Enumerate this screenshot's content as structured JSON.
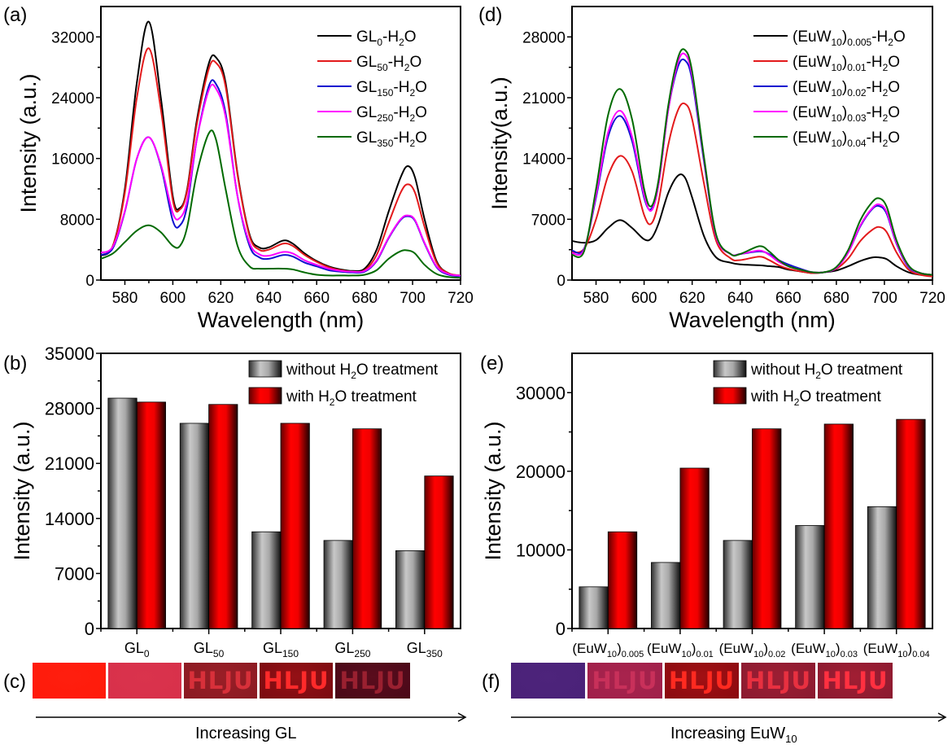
{
  "panels": {
    "a": "(a)",
    "b": "(b)",
    "c": "(c)",
    "d": "(d)",
    "e": "(e)",
    "f": "(f)"
  },
  "colors": {
    "black": "#000000",
    "red": "#e31a1c",
    "blue": "#1010d0",
    "magenta": "#ff00ff",
    "green": "#006a00",
    "bar_gray": "#a0a0a0",
    "bar_red": "#ff0000"
  },
  "chart_data": [
    {
      "id": "a",
      "type": "line",
      "xlabel": "Wavelength (nm)",
      "ylabel": "Intensity (a.u.)",
      "xlim": [
        570,
        720
      ],
      "ylim": [
        0,
        36000
      ],
      "xticks": [
        580,
        600,
        620,
        640,
        660,
        680,
        700,
        720
      ],
      "yticks": [
        0,
        8000,
        16000,
        24000,
        32000
      ],
      "legend_position": "top-right",
      "x": [
        570,
        575,
        580,
        585,
        590,
        595,
        600,
        603,
        606,
        610,
        615,
        618,
        622,
        627,
        632,
        636,
        640,
        646,
        650,
        655,
        660,
        665,
        670,
        675,
        680,
        685,
        690,
        695,
        698,
        701,
        705,
        710,
        715,
        720
      ],
      "series": [
        {
          "name": "GL0-H2O",
          "label_main": "GL",
          "label_sub": "0",
          "color": "#000000",
          "values": [
            3200,
            4500,
            12000,
            26000,
            34000,
            24000,
            11000,
            9500,
            12000,
            21000,
            28500,
            29300,
            26000,
            14000,
            6000,
            4300,
            4300,
            5200,
            4800,
            3500,
            2500,
            1800,
            1400,
            1200,
            1500,
            4000,
            9000,
            13500,
            15000,
            13500,
            8000,
            2500,
            900,
            600
          ]
        },
        {
          "name": "GL50-H2O",
          "label_main": "GL",
          "label_sub": "50",
          "color": "#e31a1c",
          "values": [
            3300,
            4500,
            11500,
            24000,
            30500,
            22500,
            10500,
            9300,
            11800,
            20500,
            27800,
            28600,
            25500,
            13800,
            5800,
            4000,
            4000,
            4800,
            4500,
            3300,
            2400,
            1700,
            1300,
            1100,
            1300,
            3300,
            7500,
            11500,
            12600,
            11500,
            7000,
            2300,
            900,
            600
          ]
        },
        {
          "name": "GL150-H2O",
          "label_main": "GL",
          "label_sub": "150",
          "color": "#1010d0",
          "values": [
            3300,
            4200,
            9000,
            16000,
            18800,
            15000,
            7800,
            7200,
            9800,
            18500,
            25500,
            25800,
            22000,
            11000,
            4500,
            3000,
            2800,
            3300,
            3100,
            2300,
            1800,
            1300,
            1100,
            1000,
            1100,
            2500,
            5500,
            7900,
            8400,
            7800,
            4800,
            1700,
            700,
            500
          ]
        },
        {
          "name": "GL250-H2O",
          "label_main": "GL",
          "label_sub": "250",
          "color": "#ff00ff",
          "values": [
            3600,
            4400,
            9100,
            16000,
            18800,
            15200,
            8800,
            8200,
            10500,
            18500,
            25000,
            25200,
            21500,
            11000,
            4900,
            3400,
            3200,
            3700,
            3500,
            2600,
            2000,
            1500,
            1200,
            1100,
            1200,
            2600,
            5600,
            8000,
            8500,
            7900,
            4900,
            1800,
            800,
            600
          ]
        },
        {
          "name": "GL350-H2O",
          "label_main": "GL",
          "label_sub": "350",
          "color": "#006a00",
          "values": [
            2800,
            3500,
            5000,
            6500,
            7200,
            6300,
            4500,
            4500,
            7000,
            14000,
            19300,
            18500,
            12000,
            4500,
            1800,
            1500,
            1500,
            1500,
            1400,
            1000,
            700,
            600,
            600,
            600,
            700,
            1300,
            2800,
            3800,
            3900,
            3500,
            2000,
            800,
            400,
            300
          ]
        }
      ]
    },
    {
      "id": "d",
      "type": "line",
      "xlabel": "Wavelength (nm)",
      "ylabel": "Intensity(a.u.)",
      "xlim": [
        570,
        720
      ],
      "ylim": [
        0,
        31500
      ],
      "xticks": [
        580,
        600,
        620,
        640,
        660,
        680,
        700,
        720
      ],
      "yticks": [
        0,
        7000,
        14000,
        21000,
        28000
      ],
      "legend_position": "top-right",
      "x": [
        570,
        575,
        580,
        585,
        590,
        595,
        600,
        603,
        606,
        610,
        614,
        617,
        620,
        625,
        630,
        636,
        640,
        648,
        652,
        656,
        660,
        665,
        670,
        675,
        680,
        685,
        690,
        695,
        698,
        701,
        705,
        710,
        715,
        720
      ],
      "series": [
        {
          "name": "(EuW10)0.005-H2O",
          "label_main": "(EuW",
          "label_sub1": "10",
          "label_mid": ")",
          "label_sub2": "0.005",
          "color": "#000000",
          "values": [
            4500,
            4300,
            4600,
            6000,
            6900,
            6000,
            4700,
            4800,
            6500,
            10000,
            12000,
            11800,
            9500,
            5000,
            2600,
            2000,
            1800,
            1700,
            1600,
            1500,
            1200,
            1000,
            800,
            900,
            1100,
            1600,
            2200,
            2600,
            2600,
            2400,
            1600,
            900,
            600,
            500
          ]
        },
        {
          "name": "(EuW10)0.01-H2O",
          "label_main": "(EuW",
          "label_sub1": "10",
          "label_mid": ")",
          "label_sub2": "0.01",
          "color": "#e31a1c",
          "values": [
            3200,
            3600,
            7000,
            12000,
            14300,
            12500,
            7500,
            6500,
            9000,
            15500,
            19500,
            20300,
            18500,
            11000,
            4500,
            2500,
            2300,
            2700,
            2300,
            1700,
            1300,
            1000,
            800,
            900,
            1300,
            2500,
            4500,
            5800,
            6100,
            5500,
            3200,
            1200,
            600,
            400
          ]
        },
        {
          "name": "(EuW10)0.02-H2O",
          "label_main": "(EuW",
          "label_sub1": "10",
          "label_mid": ")",
          "label_sub2": "0.02",
          "color": "#1010d0",
          "values": [
            3400,
            3600,
            9500,
            16500,
            18900,
            16000,
            9500,
            8200,
            11000,
            19500,
            24500,
            25300,
            23000,
            13500,
            5000,
            3000,
            3000,
            3300,
            3000,
            2300,
            1800,
            1300,
            900,
            900,
            1400,
            3200,
            6200,
            8200,
            8500,
            7600,
            4200,
            1500,
            800,
            600
          ]
        },
        {
          "name": "(EuW10)0.03-H2O",
          "label_main": "(EuW",
          "label_sub1": "10",
          "label_mid": ")",
          "label_sub2": "0.03",
          "color": "#ff00ff",
          "values": [
            3100,
            3500,
            9800,
            17000,
            19500,
            16500,
            9800,
            8000,
            11000,
            19500,
            25000,
            26000,
            23500,
            13800,
            5000,
            3000,
            3000,
            3400,
            2900,
            2100,
            1600,
            1200,
            900,
            900,
            1400,
            3200,
            6300,
            8300,
            8700,
            7800,
            4300,
            1600,
            800,
            600
          ]
        },
        {
          "name": "(EuW10)0.04-H2O",
          "label_main": "(EuW",
          "label_sub1": "10",
          "label_mid": ")",
          "label_sub2": "0.04",
          "color": "#006a00",
          "values": [
            2900,
            3300,
            10500,
            19000,
            22000,
            18500,
            10500,
            8500,
            11500,
            20000,
            25500,
            26500,
            24000,
            14000,
            5200,
            3000,
            3000,
            3900,
            3300,
            2300,
            1600,
            1200,
            900,
            900,
            1500,
            3500,
            6900,
            9000,
            9400,
            8400,
            4600,
            1700,
            800,
            600
          ]
        }
      ]
    },
    {
      "id": "b",
      "type": "bar",
      "xlabel": "",
      "ylabel": "Intensity (a.u.)",
      "ylim": [
        0,
        35000
      ],
      "yticks": [
        0,
        7000,
        14000,
        21000,
        28000,
        35000
      ],
      "legend_position": "top-right",
      "categories": [
        {
          "main": "GL",
          "sub": "0"
        },
        {
          "main": "GL",
          "sub": "50"
        },
        {
          "main": "GL",
          "sub": "150"
        },
        {
          "main": "GL",
          "sub": "250"
        },
        {
          "main": "GL",
          "sub": "350"
        }
      ],
      "series": [
        {
          "name": "without H2O treatment",
          "label_pre": "without H",
          "label_sub": "2",
          "label_post": "O treatment",
          "color": "#a0a0a0",
          "values": [
            29300,
            26100,
            12300,
            11200,
            9900
          ]
        },
        {
          "name": "with H2O treatment",
          "label_pre": "with H",
          "label_sub": "2",
          "label_post": "O treatment",
          "color": "#ff0000",
          "values": [
            28800,
            28500,
            26100,
            25400,
            19400
          ]
        }
      ]
    },
    {
      "id": "e",
      "type": "bar",
      "xlabel": "",
      "ylabel": "Intensity (a.u.)",
      "ylim": [
        0,
        35000
      ],
      "yticks": [
        0,
        10000,
        20000,
        30000
      ],
      "legend_position": "top-right",
      "categories": [
        {
          "main": "(EuW",
          "sub1": "10",
          "mid": ")",
          "sub2": "0.005"
        },
        {
          "main": "(EuW",
          "sub1": "10",
          "mid": ")",
          "sub2": "0.01"
        },
        {
          "main": "(EuW",
          "sub1": "10",
          "mid": ")",
          "sub2": "0.02"
        },
        {
          "main": "(EuW",
          "sub1": "10",
          "mid": ")",
          "sub2": "0.03"
        },
        {
          "main": "(EuW",
          "sub1": "10",
          "mid": ")",
          "sub2": "0.04"
        }
      ],
      "series": [
        {
          "name": "without H2O treatment",
          "label_pre": "without H",
          "label_sub": "2",
          "label_post": "O treatment",
          "color": "#a0a0a0",
          "values": [
            5300,
            8400,
            11200,
            13100,
            15500
          ]
        },
        {
          "name": "with H2O treatment",
          "label_pre": "with H",
          "label_sub": "2",
          "label_post": "O treatment",
          "color": "#ff0000",
          "values": [
            12300,
            20400,
            25400,
            26000,
            26600
          ]
        }
      ]
    }
  ],
  "photo_strips": {
    "c": {
      "tiles": [
        {
          "text": "",
          "bg": "#ff1a0a",
          "fg": "#ff3020"
        },
        {
          "text": "",
          "bg": "#d8304a",
          "fg": "#e04058"
        },
        {
          "text": "HLJU",
          "bg": "#8a1a22",
          "fg": "#d8303a"
        },
        {
          "text": "HLJU",
          "bg": "#7a0a10",
          "fg": "#ff2a2a"
        },
        {
          "text": "HLJU",
          "bg": "#4a0818",
          "fg": "#9a2030"
        }
      ],
      "caption": "Increasing GL"
    },
    "f": {
      "tiles": [
        {
          "text": "",
          "bg": "#4a2278",
          "fg": "#5a2a88"
        },
        {
          "text": "HLJU",
          "bg": "#a0204a",
          "fg": "#c8305a"
        },
        {
          "text": "HLJU",
          "bg": "#8a0a10",
          "fg": "#ff2a20"
        },
        {
          "text": "HLJU",
          "bg": "#8a1a30",
          "fg": "#e83040"
        },
        {
          "text": "HLJU",
          "bg": "#8a1a30",
          "fg": "#ff3040"
        }
      ],
      "caption_main": "Increasing EuW",
      "caption_sub": "10"
    }
  }
}
